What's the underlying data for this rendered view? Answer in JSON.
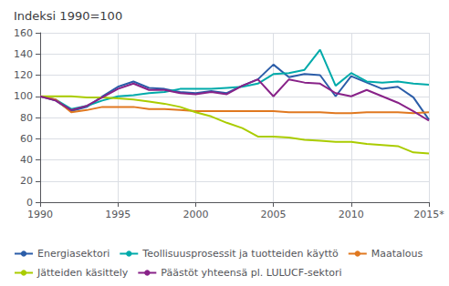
{
  "chart_data": {
    "type": "line",
    "title": "Indeksi 1990=100",
    "x": [
      1990,
      1991,
      1992,
      1993,
      1994,
      1995,
      1996,
      1997,
      1998,
      1999,
      2000,
      2001,
      2002,
      2003,
      2004,
      2005,
      2006,
      2007,
      2008,
      2009,
      2010,
      2011,
      2012,
      2013,
      2014,
      2015
    ],
    "series": [
      {
        "name": "Energiasektori",
        "color": "#2B5DA8",
        "values": [
          100,
          96,
          86,
          90,
          100,
          109,
          114,
          108,
          107,
          104,
          103,
          105,
          103,
          110,
          116,
          130,
          118,
          121,
          120,
          100,
          119,
          113,
          107,
          109,
          99,
          78
        ]
      },
      {
        "name": "Teollisuusprosessit ja tuotteiden käyttö",
        "color": "#00AAAA",
        "values": [
          100,
          97,
          88,
          91,
          96,
          100,
          101,
          103,
          104,
          107,
          107,
          107,
          108,
          109,
          112,
          121,
          122,
          125,
          144,
          110,
          122,
          114,
          113,
          114,
          112,
          111
        ]
      },
      {
        "name": "Maatalous",
        "color": "#E07820",
        "values": [
          100,
          97,
          85,
          87,
          90,
          90,
          90,
          88,
          88,
          87,
          86,
          86,
          86,
          86,
          86,
          86,
          85,
          85,
          85,
          84,
          84,
          85,
          85,
          85,
          84,
          85
        ]
      },
      {
        "name": "Jätteiden käsittely",
        "color": "#AACC00",
        "values": [
          100,
          100,
          100,
          99,
          99,
          98,
          97,
          95,
          93,
          90,
          85,
          81,
          75,
          70,
          62,
          62,
          61,
          59,
          58,
          57,
          57,
          55,
          54,
          53,
          47,
          46
        ]
      },
      {
        "name": "Päästöt yhteensä pl. LULUCF-sektori",
        "color": "#882288",
        "values": [
          100,
          96,
          87,
          91,
          99,
          107,
          112,
          106,
          106,
          103,
          102,
          104,
          102,
          110,
          116,
          100,
          116,
          113,
          112,
          103,
          100,
          106,
          100,
          94,
          86,
          77
        ]
      }
    ],
    "xlim": [
      1990,
      2015
    ],
    "xticks": [
      1990,
      1995,
      2000,
      2005,
      2010,
      {
        "value": 2015,
        "label": "2015*"
      }
    ],
    "ylim": [
      0,
      160
    ],
    "yticks": [
      0,
      20,
      40,
      60,
      80,
      100,
      120,
      140,
      160
    ],
    "grid": true,
    "legend": "bottom"
  }
}
